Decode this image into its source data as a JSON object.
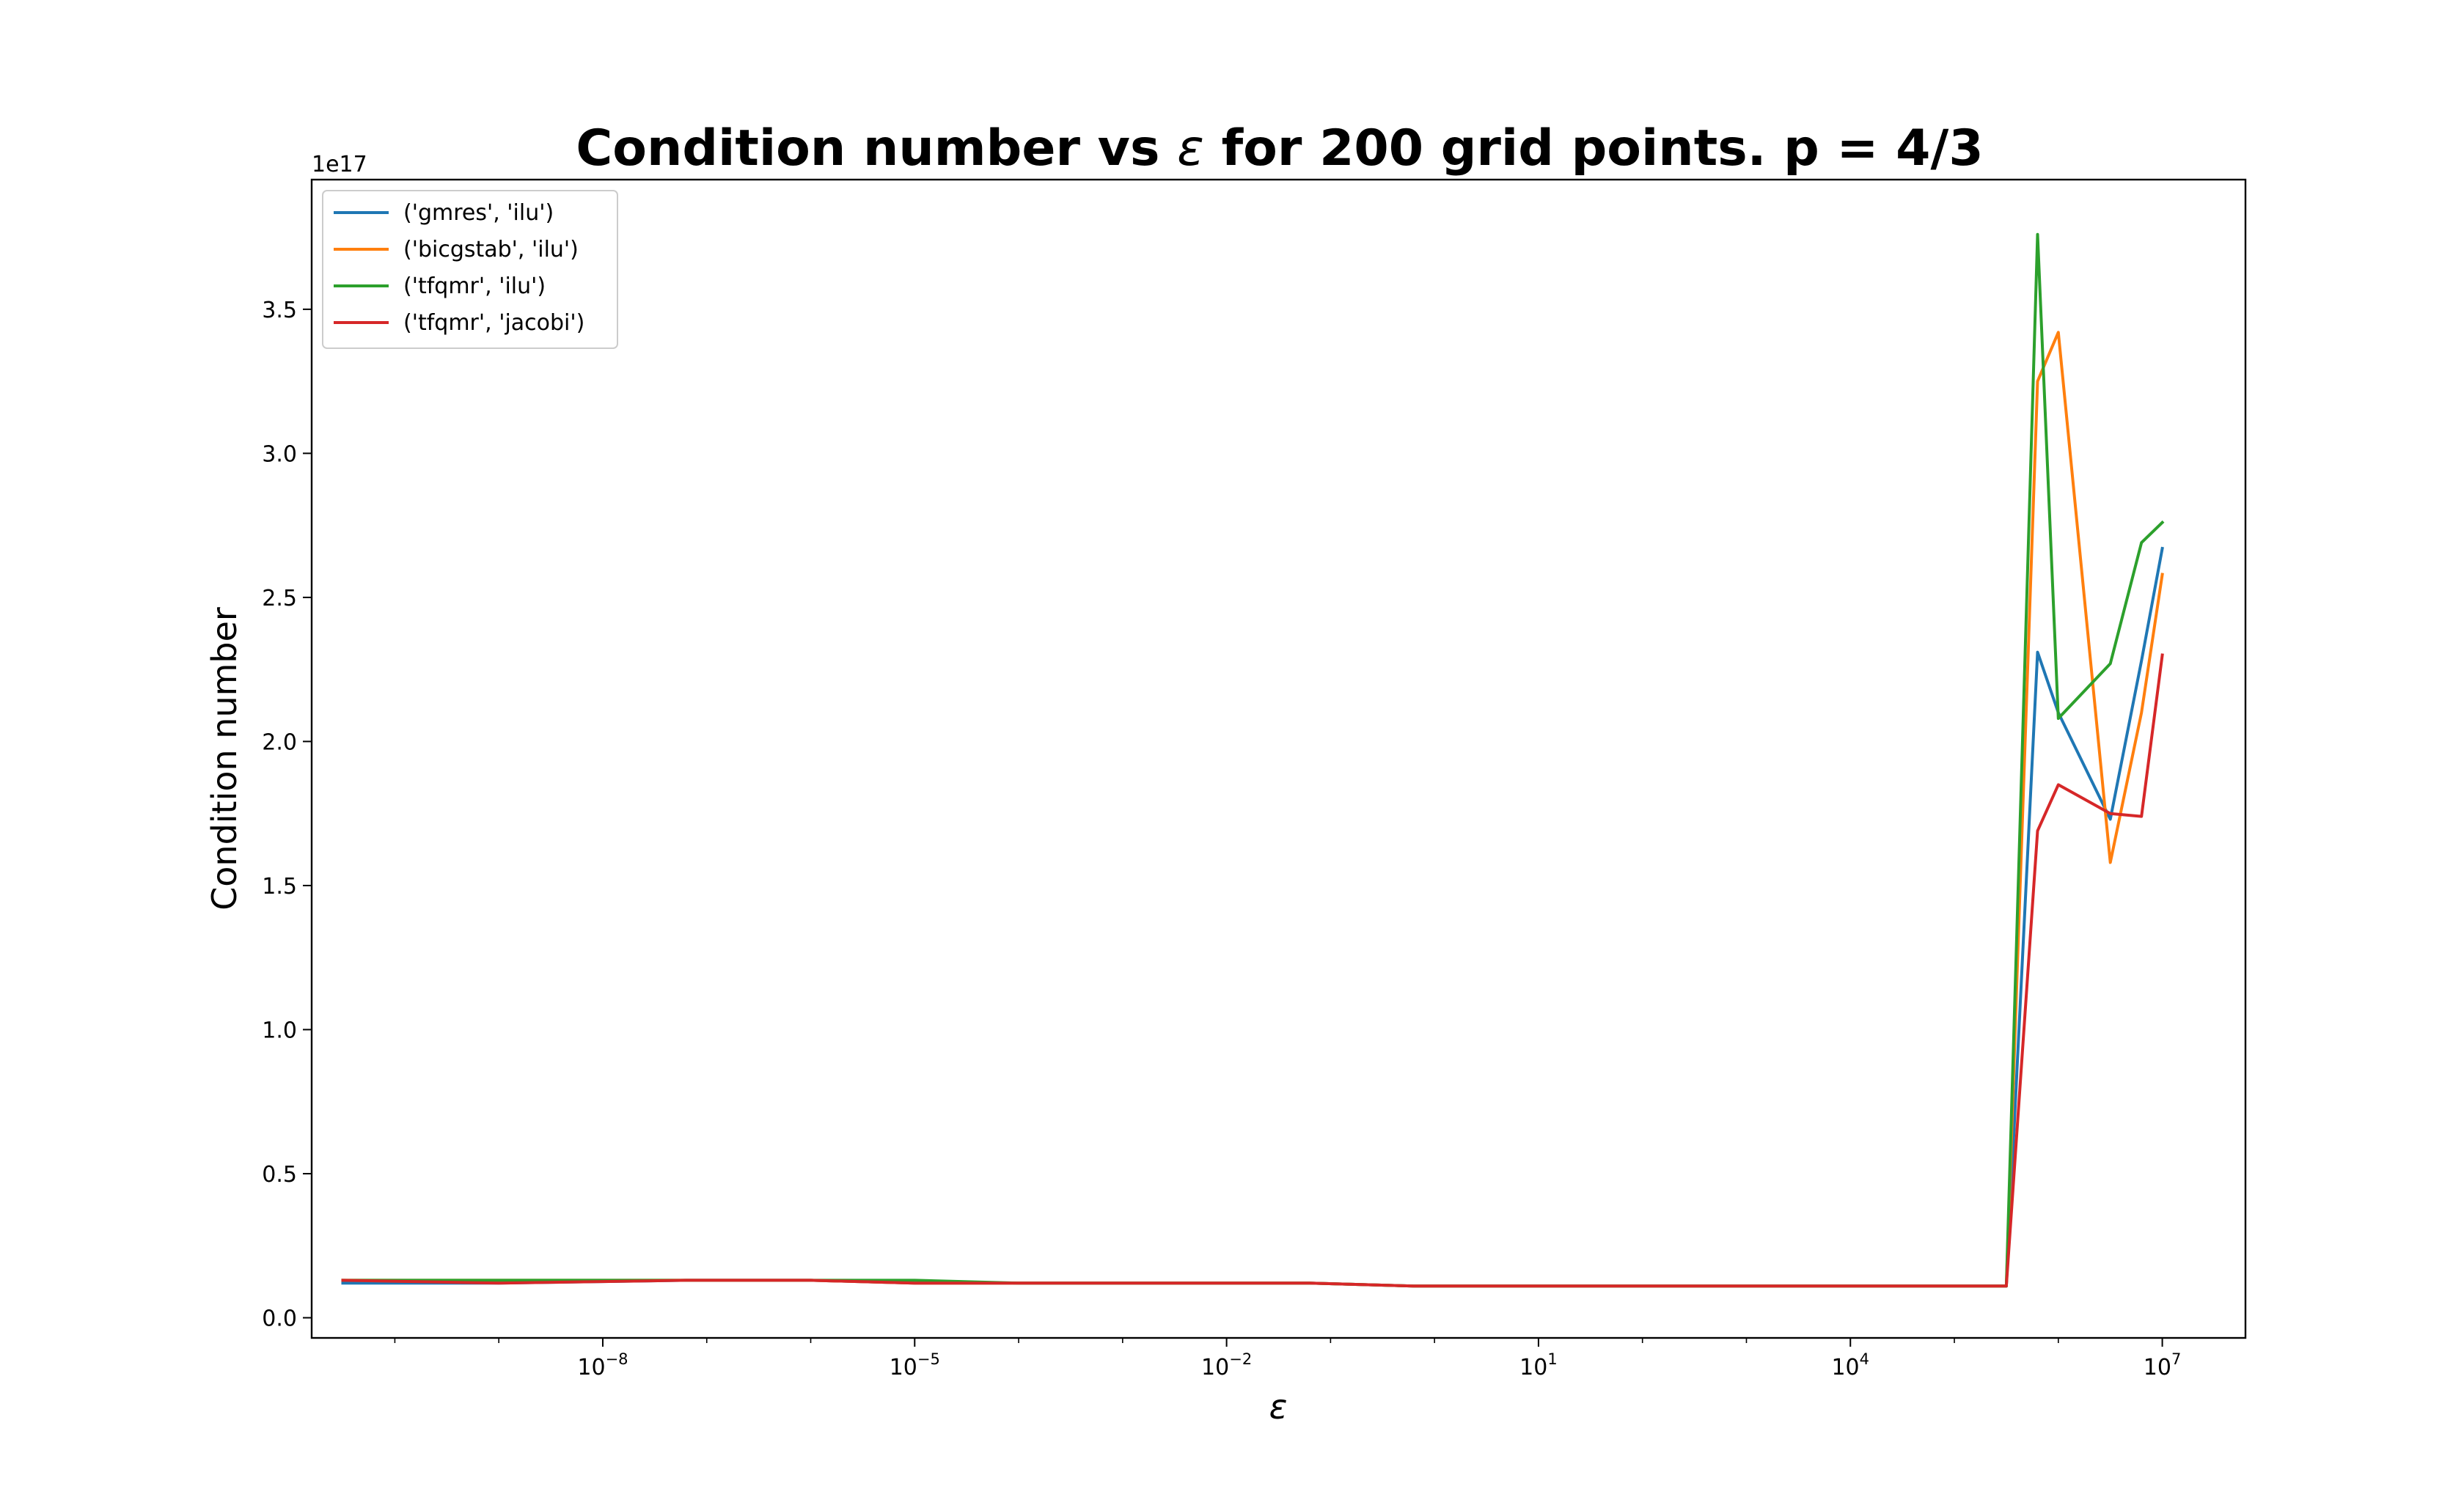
{
  "chart_data": {
    "type": "line",
    "title_prefix": "Condition number vs ",
    "title_symbol": "ε",
    "title_suffix": " for 200 grid points. p = 4/3",
    "xlabel": "ε",
    "ylabel": "Condition number",
    "xscale": "log",
    "xlim_log10": [
      -10.8,
      7.8
    ],
    "ylim": [
      -0.07,
      3.95
    ],
    "y_multiplier_label": "1e17",
    "x_ticks": [
      {
        "base": "10",
        "exp": "−8",
        "log10": -8
      },
      {
        "base": "10",
        "exp": "−5",
        "log10": -5
      },
      {
        "base": "10",
        "exp": "−2",
        "log10": -2
      },
      {
        "base": "10",
        "exp": "1",
        "log10": 1
      },
      {
        "base": "10",
        "exp": "4",
        "log10": 4
      },
      {
        "base": "10",
        "exp": "7",
        "log10": 7
      }
    ],
    "y_ticks": [
      {
        "value": 0.0,
        "label": "0.0"
      },
      {
        "value": 0.5,
        "label": "0.5"
      },
      {
        "value": 1.0,
        "label": "1.0"
      },
      {
        "value": 1.5,
        "label": "1.5"
      },
      {
        "value": 2.0,
        "label": "2.0"
      },
      {
        "value": 2.5,
        "label": "2.5"
      },
      {
        "value": 3.0,
        "label": "3.0"
      },
      {
        "value": 3.5,
        "label": "3.5"
      }
    ],
    "legend_position": "upper-left",
    "grid": false,
    "x_log10": [
      -10.5,
      -9.0,
      -7.2,
      -6.0,
      -5.0,
      -4.0,
      -3.0,
      -2.0,
      -1.2,
      -0.2,
      1.0,
      2.0,
      3.0,
      4.0,
      5.0,
      5.5,
      5.8,
      6.0,
      6.5,
      6.8,
      7.0
    ],
    "series": [
      {
        "name": "('gmres', 'ilu')",
        "color": "#1f77b4",
        "y": [
          0.12,
          0.12,
          0.13,
          0.13,
          0.12,
          0.12,
          0.12,
          0.12,
          0.12,
          0.11,
          0.11,
          0.11,
          0.11,
          0.11,
          0.11,
          0.11,
          2.31,
          2.1,
          1.73,
          2.28,
          2.67
        ]
      },
      {
        "name": "('bicgstab', 'ilu')",
        "color": "#ff7f0e",
        "y": [
          0.13,
          0.13,
          0.13,
          0.13,
          0.12,
          0.12,
          0.12,
          0.12,
          0.12,
          0.11,
          0.11,
          0.11,
          0.11,
          0.11,
          0.11,
          0.11,
          3.25,
          3.42,
          1.58,
          2.1,
          2.58
        ]
      },
      {
        "name": "('tfqmr', 'ilu')",
        "color": "#2ca02c",
        "y": [
          0.13,
          0.13,
          0.13,
          0.13,
          0.13,
          0.12,
          0.12,
          0.12,
          0.12,
          0.11,
          0.11,
          0.11,
          0.11,
          0.11,
          0.11,
          0.11,
          3.76,
          2.08,
          2.27,
          2.69,
          2.76
        ]
      },
      {
        "name": "('tfqmr', 'jacobi')",
        "color": "#d62728",
        "y": [
          0.13,
          0.12,
          0.13,
          0.13,
          0.12,
          0.12,
          0.12,
          0.12,
          0.12,
          0.11,
          0.11,
          0.11,
          0.11,
          0.11,
          0.11,
          0.11,
          1.69,
          1.85,
          1.75,
          1.74,
          2.3
        ]
      }
    ]
  }
}
